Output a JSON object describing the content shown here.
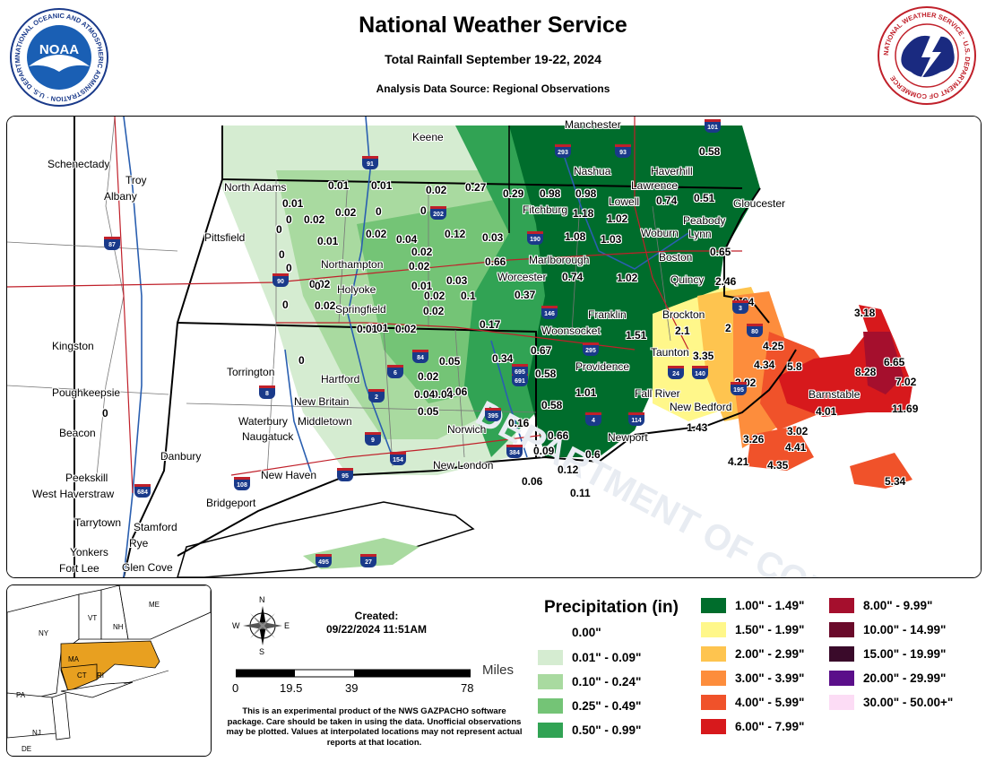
{
  "header": {
    "title": "National Weather Service",
    "subtitle": "Total Rainfall September 19-22, 2024",
    "source": "Analysis Data Source: Regional Observations",
    "noaa_ring_text": "NATIONAL OCEANIC AND ATMOSPHERIC ADMINISTRATION · U.S. DEPARTMENT OF COMMERCE",
    "noaa_logo_text": "NOAA",
    "nws_ring_text": "NATIONAL WEATHER SERVICE · U.S. DEPARTMENT OF COMMERCE"
  },
  "map": {
    "cities": [
      {
        "name": "Manchester"
      },
      {
        "name": "Keene"
      },
      {
        "name": "Nashua"
      },
      {
        "name": "Haverhill"
      },
      {
        "name": "Schenectady"
      },
      {
        "name": "Troy"
      },
      {
        "name": "Albany"
      },
      {
        "name": "North Adams"
      },
      {
        "name": "Lawrence"
      },
      {
        "name": "Lowell"
      },
      {
        "name": "Gloucester"
      },
      {
        "name": "Fitchburg"
      },
      {
        "name": "Peabody"
      },
      {
        "name": "Woburn"
      },
      {
        "name": "Lynn"
      },
      {
        "name": "Pittsfield"
      },
      {
        "name": "Marlborough"
      },
      {
        "name": "Boston"
      },
      {
        "name": "Northampton"
      },
      {
        "name": "Worcester"
      },
      {
        "name": "Quincy"
      },
      {
        "name": "Holyoke"
      },
      {
        "name": "Springfield"
      },
      {
        "name": "Franklin"
      },
      {
        "name": "Brockton"
      },
      {
        "name": "Woonsocket"
      },
      {
        "name": "Kingston"
      },
      {
        "name": "Taunton"
      },
      {
        "name": "Providence"
      },
      {
        "name": "Torrington"
      },
      {
        "name": "Hartford"
      },
      {
        "name": "Poughkeepsie"
      },
      {
        "name": "Fall River"
      },
      {
        "name": "Barnstable"
      },
      {
        "name": "New Britain"
      },
      {
        "name": "New Bedford"
      },
      {
        "name": "Middletown"
      },
      {
        "name": "Waterbury"
      },
      {
        "name": "Norwich"
      },
      {
        "name": "Beacon"
      },
      {
        "name": "Naugatuck"
      },
      {
        "name": "Newport"
      },
      {
        "name": "Danbury"
      },
      {
        "name": "New London"
      },
      {
        "name": "New Haven"
      },
      {
        "name": "Peekskill"
      },
      {
        "name": "West Haverstraw"
      },
      {
        "name": "Bridgeport"
      },
      {
        "name": "Tarrytown"
      },
      {
        "name": "Stamford"
      },
      {
        "name": "Rye"
      },
      {
        "name": "Yonkers"
      },
      {
        "name": "Fort Lee"
      },
      {
        "name": "Glen Cove"
      }
    ],
    "observations": [
      "0.58",
      "0.01",
      "0.01",
      "0.02",
      "0.27",
      "0.29",
      "0.98",
      "0.98",
      "0.74",
      "0.51",
      "0.01",
      "0.02",
      "0.02",
      "0",
      "0",
      "1.18",
      "1.02",
      "0",
      "0.02",
      "0",
      "0",
      "0.04",
      "0.12",
      "0.03",
      "1.08",
      "1.03",
      "0.01",
      "0",
      "0.02",
      "0.65",
      "0",
      "0.02",
      "0.66",
      "0.02",
      "0.03",
      "0.74",
      "1.02",
      "2.46",
      "0",
      "0.01",
      "0.02",
      "0.1",
      "0.37",
      "0",
      "0.02",
      "0.02",
      "3.64",
      "0.01",
      "0.02",
      "0.17",
      "1.51",
      "2.1",
      "2",
      "0.01",
      "0.67",
      "0.34",
      "0.05",
      "3.18",
      "4.25",
      "0",
      "0.02",
      "0.58",
      "3.35",
      "4.34",
      "5.8",
      "0.06",
      "0.04",
      "6.65",
      "8.28",
      "7.02",
      "1.01",
      "3.02",
      "0.04",
      "0.05",
      "0.58",
      "0.16",
      "4.01",
      "11.69",
      "1.43",
      "3.02",
      "0.66",
      "3.26",
      "0.09",
      "0.6",
      "4.41",
      "4.21",
      "4.35",
      "0.12",
      "0.06",
      "0.11",
      "5.34",
      "0"
    ],
    "highway_shields": [
      "101",
      "293",
      "93",
      "91",
      "202",
      "190",
      "90",
      "146",
      "295",
      "3",
      "80",
      "24",
      "140",
      "195",
      "114",
      "4",
      "6",
      "84",
      "691",
      "695",
      "395",
      "384",
      "9",
      "154",
      "95",
      "108",
      "684",
      "87",
      "8",
      "2",
      "495",
      "27"
    ]
  },
  "inset": {
    "states": [
      "ME",
      "NY",
      "VT",
      "NH",
      "MA",
      "CT",
      "RI",
      "PA",
      "NJ",
      "DE"
    ]
  },
  "compass": {
    "n": "N",
    "s": "S",
    "e": "E",
    "w": "W"
  },
  "created": {
    "label": "Created:",
    "datetime": "09/22/2024 11:51AM"
  },
  "scalebar": {
    "unit": "Miles",
    "ticks": [
      "0",
      "19.5",
      "39",
      "78"
    ]
  },
  "disclaimer": "This is an experimental product of the NWS GAZPACHO software package. Care should be taken in using the data. Unofficial observations may be plotted. Values at interpolated locations may not represent actual reports at that location.",
  "legend": {
    "title": "Precipitation (in)",
    "entries": [
      {
        "label": "0.00\"",
        "color": "#ffffff"
      },
      {
        "label": "0.01\" - 0.09\"",
        "color": "#d5ecd1"
      },
      {
        "label": "0.10\" - 0.24\"",
        "color": "#a9daa0"
      },
      {
        "label": "0.25\" - 0.49\"",
        "color": "#74c476"
      },
      {
        "label": "0.50\" - 0.99\"",
        "color": "#31a354"
      },
      {
        "label": "1.00\" - 1.49\"",
        "color": "#006d2c"
      },
      {
        "label": "1.50\" - 1.99\"",
        "color": "#fff78a"
      },
      {
        "label": "2.00\" - 2.99\"",
        "color": "#fec44f"
      },
      {
        "label": "3.00\" - 3.99\"",
        "color": "#fd8d3c"
      },
      {
        "label": "4.00\" - 5.99\"",
        "color": "#f0522a"
      },
      {
        "label": "6.00\" - 7.99\"",
        "color": "#d7191c"
      },
      {
        "label": "8.00\" - 9.99\"",
        "color": "#a50f2d"
      },
      {
        "label": "10.00\" - 14.99\"",
        "color": "#6a0a2a"
      },
      {
        "label": "15.00\" - 19.99\"",
        "color": "#3a0a2a"
      },
      {
        "label": "20.00\" - 29.99\"",
        "color": "#5b0f8a"
      },
      {
        "label": "30.00\" - 50.00+\"",
        "color": "#fcdcf5"
      }
    ]
  }
}
